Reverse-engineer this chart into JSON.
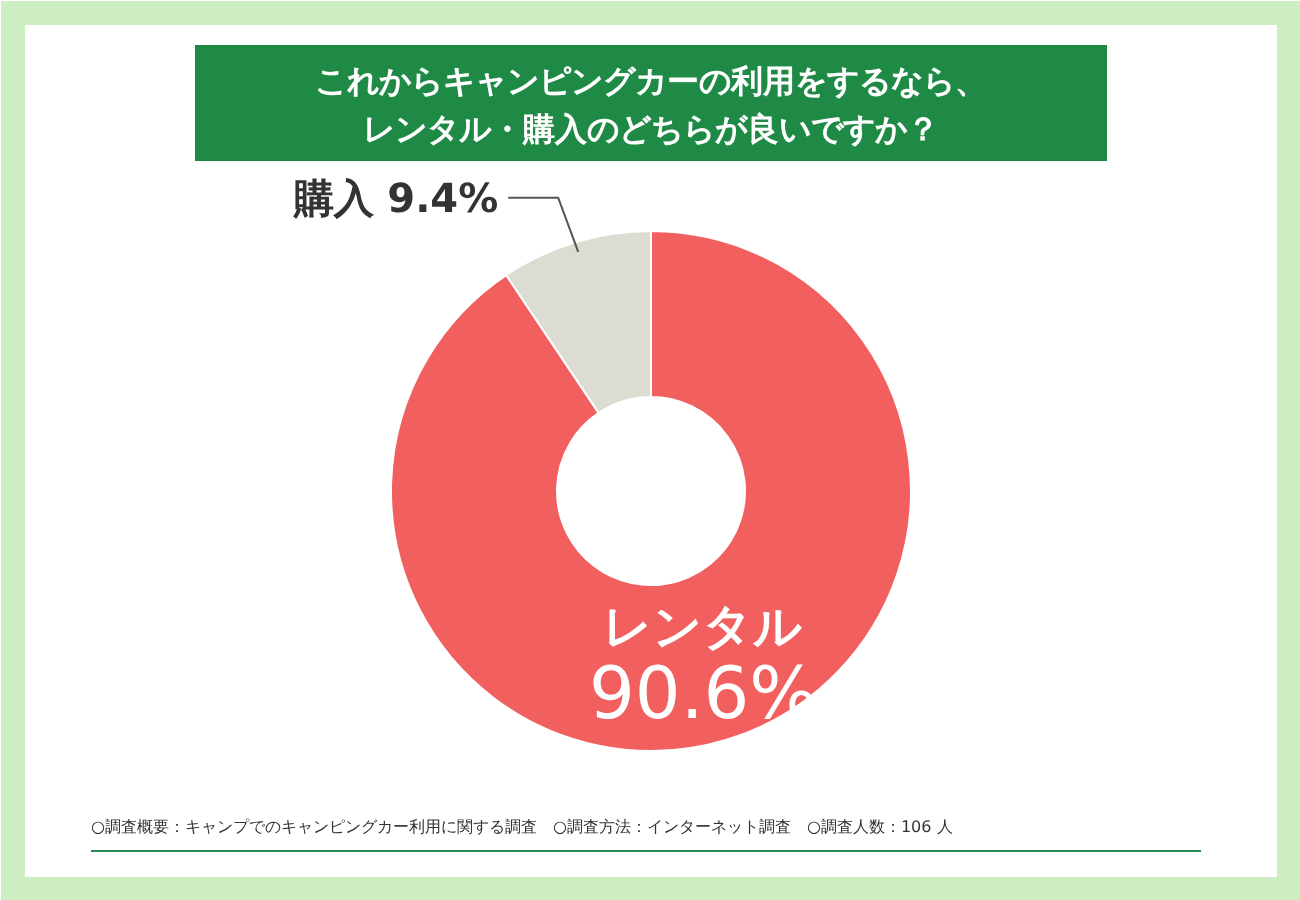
{
  "chart_data": {
    "type": "donut",
    "title": "これからキャンピングカーの利用をするなら、レンタル・購入のどちらが良いですか？",
    "categories": [
      "レンタル",
      "購入"
    ],
    "values": [
      90.6,
      9.4
    ],
    "colors": [
      "#f25f5f",
      "#dcdcd2"
    ],
    "value_labels": [
      "90.6%",
      "9.4%"
    ],
    "annotations": [
      "○調査概要：キャンプでのキャンピングカー利用に関する調査　○調査方法：インターネット調査　○調査人数：106 人"
    ]
  }
}
